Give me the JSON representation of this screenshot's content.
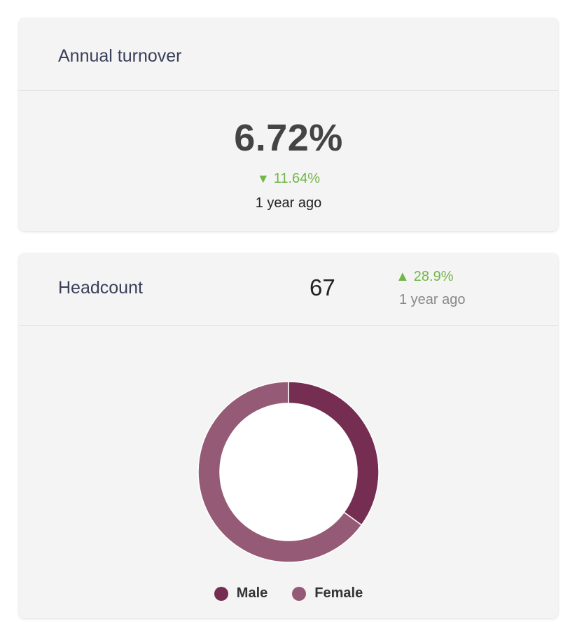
{
  "turnover": {
    "title": "Annual turnover",
    "value": "6.72%",
    "change": "11.64%",
    "change_direction": "down",
    "period": "1 year ago"
  },
  "headcount": {
    "title": "Headcount",
    "value": "67",
    "change": "28.9%",
    "change_direction": "up",
    "period": "1 year ago"
  },
  "colors": {
    "positive": "#73b648",
    "male": "#752d51",
    "female": "#955a75"
  },
  "chart_data": {
    "type": "pie",
    "variant": "donut",
    "labels": [
      "Male",
      "Female"
    ],
    "values": [
      35,
      65
    ],
    "colors": [
      "#752d51",
      "#955a75"
    ],
    "legend_position": "bottom"
  }
}
